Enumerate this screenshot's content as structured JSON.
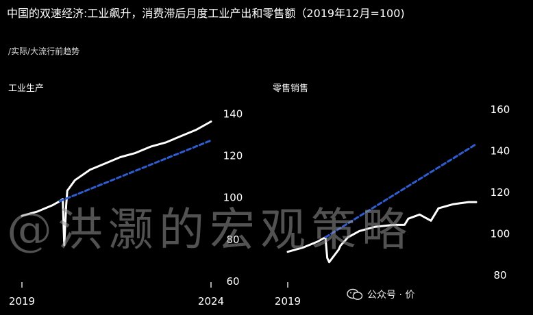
{
  "title": "中国的双速经济:工业飙升，消费滞后月度工业产出和零售额（2019年12月=100)",
  "subtitle": "/实际/大流行前趋势",
  "watermark": "@洪灏的宏观策略",
  "account": {
    "label": "公众号 · 价",
    "icon": "wechat-icon"
  },
  "colors": {
    "background": "#000000",
    "actual": "#ffffff",
    "trend": "#2f5dd1",
    "tick": "#ffffff"
  },
  "chart_data": [
    {
      "type": "line",
      "title": "工业生产",
      "x_tick_labels": [
        "2019",
        "2024"
      ],
      "x_ticks": [
        2019,
        2024
      ],
      "xlim": [
        2019,
        2024
      ],
      "ylim": [
        60,
        145
      ],
      "y_ticks": [
        60,
        80,
        100,
        120,
        140
      ],
      "grid": false,
      "series": [
        {
          "role": "actual",
          "style": "solid",
          "x": [
            2019.0,
            2019.4,
            2019.8,
            2020.0,
            2020.08,
            2020.12,
            2020.17,
            2020.2,
            2020.4,
            2020.8,
            2021.2,
            2021.6,
            2022.0,
            2022.4,
            2022.8,
            2023.2,
            2023.6,
            2024.0
          ],
          "y": [
            91,
            93,
            96,
            98,
            99,
            77,
            96,
            103,
            108,
            113,
            116,
            119,
            121,
            124,
            126,
            129,
            132,
            136
          ]
        },
        {
          "role": "trend",
          "style": "dashed",
          "x": [
            2020.0,
            2024.0
          ],
          "y": [
            98,
            127
          ]
        }
      ]
    },
    {
      "type": "line",
      "title": "零售销售",
      "x_tick_labels": [
        "2019"
      ],
      "x_ticks": [
        2019
      ],
      "xlim": [
        2019,
        2024
      ],
      "ylim": [
        77,
        163
      ],
      "y_ticks": [
        80,
        100,
        120,
        140,
        160
      ],
      "grid": false,
      "series": [
        {
          "role": "actual",
          "style": "solid",
          "x": [
            2019.0,
            2019.4,
            2019.8,
            2020.0,
            2020.05,
            2020.1,
            2020.35,
            2020.4,
            2020.6,
            2020.9,
            2021.3,
            2021.8,
            2022.1,
            2022.2,
            2022.5,
            2022.8,
            2023.0,
            2023.4,
            2023.8,
            2024.0
          ],
          "y": [
            91,
            93,
            96,
            98,
            88,
            86,
            92,
            94,
            98,
            101,
            103,
            104,
            104,
            107,
            109,
            106,
            112,
            114,
            115,
            115
          ]
        },
        {
          "role": "trend",
          "style": "dashed",
          "x": [
            2020.0,
            2024.0
          ],
          "y": [
            98,
            143
          ]
        }
      ]
    }
  ]
}
